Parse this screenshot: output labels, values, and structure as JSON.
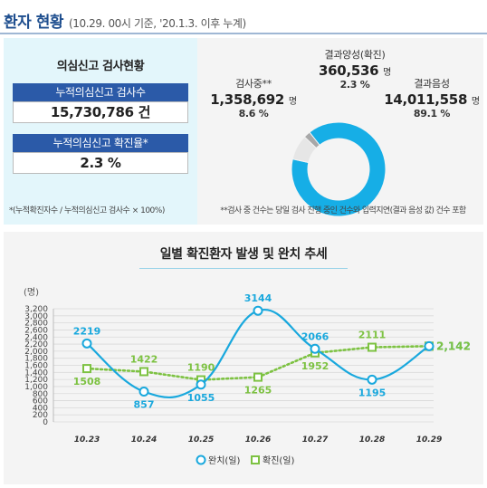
{
  "header": {
    "title": "환자 현황",
    "subtitle": "(10.29. 00시 기준, '20.1.3. 이후 누계)"
  },
  "testing_panel": {
    "title": "의심신고 검사현황",
    "cumulative_tests_label": "누적의심신고 검사수",
    "cumulative_tests_value": "15,730,786 건",
    "positive_rate_label": "누적의심신고 확진율*",
    "positive_rate_value": "2.3 %",
    "footnote": "*(누적확진자수 / 누적의심신고 검사수 × 100%)"
  },
  "donut": {
    "segments": [
      {
        "name": "결과음성",
        "value": "14,011,558",
        "unit": "명",
        "pct": "89.1 %",
        "share": 89.1,
        "color": "#16aee6"
      },
      {
        "name": "검사중**",
        "value": "1,358,692",
        "unit": "명",
        "pct": "8.6 %",
        "share": 8.6,
        "color": "#e6e6e6"
      },
      {
        "name": "결과양성(확진)",
        "value": "360,536",
        "unit": "명",
        "pct": "2.3 %",
        "share": 2.3,
        "color": "#a8a8a8"
      }
    ],
    "footnote": "**검사 중 건수는 당일 검사 진행 중인 건수와 입력지연(결과 음성 값) 건수 포함"
  },
  "chart_data": {
    "type": "line",
    "title": "일별 확진환자 발생 및 완치 추세",
    "ylabel": "(명)",
    "ylim": [
      0,
      3200
    ],
    "yticks": [
      "0",
      "200",
      "400",
      "600",
      "800",
      "1,000",
      "1,200",
      "1,400",
      "1,600",
      "1,800",
      "2,000",
      "2,200",
      "2,400",
      "2,600",
      "2,800",
      "3,000",
      "3,200"
    ],
    "categories": [
      "10.23",
      "10.24",
      "10.25",
      "10.26",
      "10.27",
      "10.28",
      "10.29"
    ],
    "grid": true,
    "legend_position": "bottom",
    "series": [
      {
        "name": "완치(일)",
        "values": [
          2219,
          857,
          1055,
          3144,
          2066,
          1195,
          2142
        ],
        "labels": [
          "2219",
          "857",
          "1055",
          "3144",
          "2066",
          "1195",
          "2,142"
        ],
        "color": "#19a8dd",
        "style": "solid",
        "marker": "circle"
      },
      {
        "name": "확진(일)",
        "values": [
          1508,
          1422,
          1190,
          1265,
          1952,
          2111,
          2142
        ],
        "labels": [
          "1508",
          "1422",
          "1190",
          "1265",
          "1952",
          "2111",
          "2,142"
        ],
        "color": "#7dc242",
        "style": "dotted",
        "marker": "square"
      }
    ]
  }
}
